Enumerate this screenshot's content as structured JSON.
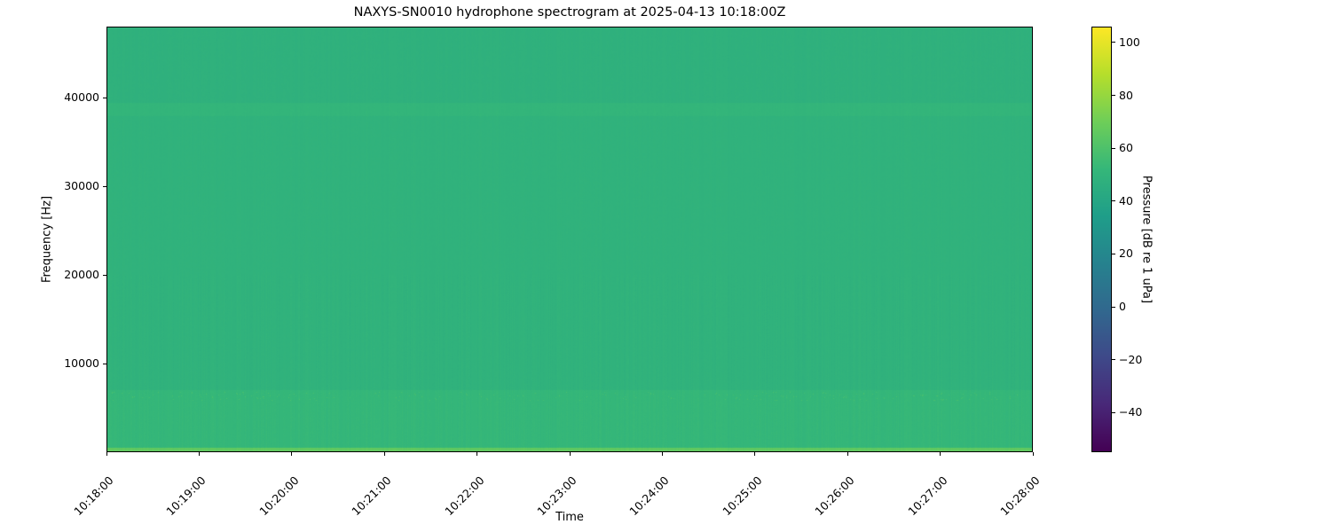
{
  "chart_data": {
    "type": "heatmap",
    "title": "NAXYS-SN0010 hydrophone spectrogram at 2025-04-13 10:18:00Z",
    "xlabel": "Time",
    "ylabel": "Frequency [Hz]",
    "colorbar_label": "Pressure [dB re 1 uPa]",
    "colormap": "viridis",
    "xlim": [
      "10:18:00",
      "10:28:00"
    ],
    "x_ticks": [
      "10:18:00",
      "10:19:00",
      "10:20:00",
      "10:21:00",
      "10:22:00",
      "10:23:00",
      "10:24:00",
      "10:25:00",
      "10:26:00",
      "10:27:00",
      "10:28:00"
    ],
    "ylim": [
      0,
      48000
    ],
    "y_ticks": [
      10000,
      20000,
      30000,
      40000
    ],
    "clim": [
      -55,
      106
    ],
    "colorbar_ticks": [
      -40,
      -20,
      0,
      20,
      40,
      60,
      80,
      100
    ],
    "bands": [
      {
        "freq_hz": [
          0,
          500
        ],
        "level_db": 66
      },
      {
        "freq_hz": [
          500,
          7000
        ],
        "level_db": 52
      },
      {
        "freq_hz": [
          7000,
          38000
        ],
        "level_db": 49
      },
      {
        "freq_hz": [
          38000,
          39500
        ],
        "level_db": 51
      },
      {
        "freq_hz": [
          39500,
          48000
        ],
        "level_db": 48
      }
    ]
  }
}
